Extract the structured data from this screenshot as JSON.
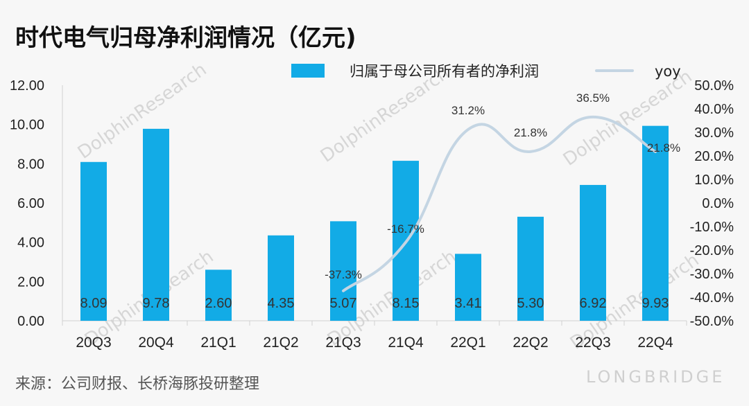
{
  "title": "时代电气归母净利润情况（亿元)",
  "source": "来源：公司财报、长桥海豚投研整理",
  "watermarks": [
    "DolphinResearch",
    "LONGBRIDGE"
  ],
  "colors": {
    "bar": "#12abe6",
    "line": "#c4d5e3",
    "axis": "#d0d0d0"
  },
  "chart_data": {
    "type": "bar+line",
    "categories": [
      "20Q3",
      "20Q4",
      "21Q1",
      "21Q2",
      "21Q3",
      "21Q4",
      "22Q1",
      "22Q2",
      "22Q3",
      "22Q4"
    ],
    "series": [
      {
        "name": "归属于母公司所有者的净利润",
        "type": "bar",
        "axis": "left",
        "values": [
          8.09,
          9.78,
          2.6,
          4.35,
          5.07,
          8.15,
          3.41,
          5.3,
          6.92,
          9.93
        ],
        "labels": [
          "8.09",
          "9.78",
          "2.60",
          "4.35",
          "5.07",
          "8.15",
          "3.41",
          "5.30",
          "6.92",
          "9.93"
        ]
      },
      {
        "name": "yoy",
        "type": "line",
        "axis": "right",
        "values": [
          null,
          null,
          null,
          null,
          -37.3,
          -16.7,
          31.2,
          21.8,
          36.5,
          21.8
        ],
        "labels": [
          null,
          null,
          null,
          null,
          "-37.3%",
          "-16.7%",
          "31.2%",
          "21.8%",
          "36.5%",
          "21.8%"
        ]
      }
    ],
    "left_axis": {
      "min": 0,
      "max": 12,
      "ticks": [
        0,
        2,
        4,
        6,
        8,
        10,
        12
      ],
      "tick_labels": [
        "0.00",
        "2.00",
        "4.00",
        "6.00",
        "8.00",
        "10.00",
        "12.00"
      ]
    },
    "right_axis": {
      "min": -50,
      "max": 50,
      "ticks": [
        -50,
        -40,
        -30,
        -20,
        -10,
        0,
        10,
        20,
        30,
        40,
        50
      ],
      "tick_labels": [
        "-50.0%",
        "-40.0%",
        "-30.0%",
        "-20.0%",
        "-10.0%",
        "0.0%",
        "10.0%",
        "20.0%",
        "30.0%",
        "40.0%",
        "50.0%"
      ]
    },
    "legend_position": "top",
    "grid": false
  }
}
